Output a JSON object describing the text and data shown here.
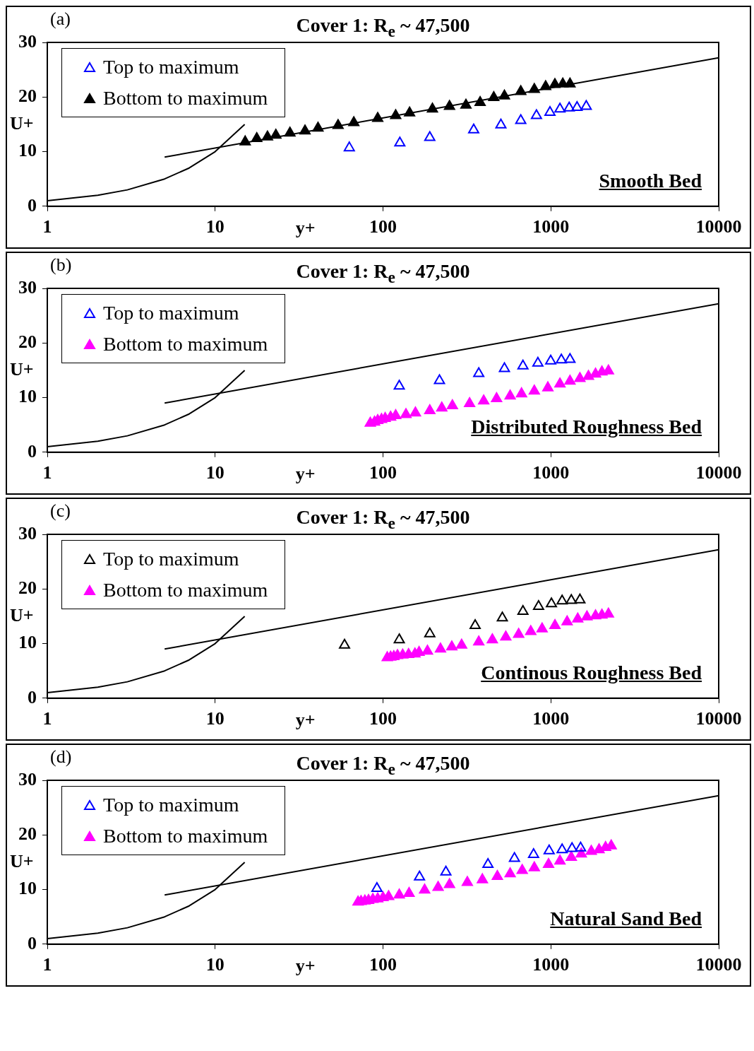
{
  "chart_data": [
    {
      "type": "scatter",
      "title": "Cover 1: R$_{e}$ ~ 47,500",
      "xlabel": "y+",
      "ylabel": "U+",
      "annotations": [
        "(a)",
        "Smooth Bed"
      ],
      "log": "x",
      "xlim": [
        1,
        10000
      ],
      "xticks": [
        1,
        10,
        100,
        1000,
        10000
      ],
      "ylim": [
        0,
        30
      ],
      "yticks": [
        0,
        10,
        20,
        30
      ],
      "grid": false,
      "legend": "top left",
      "marker": "triangle",
      "series": [
        {
          "name": "Top to maximum",
          "color": "#0000ff",
          "x": [
            63,
            126,
            190,
            347,
            504,
            662,
            821,
            988,
            1133,
            1286,
            1432,
            1625
          ],
          "values": [
            10.7,
            11.6,
            12.6,
            14.0,
            14.9,
            15.7,
            16.6,
            17.2,
            17.8,
            18.0,
            18.1,
            18.3
          ]
        },
        {
          "name": "Bottom to maximum",
          "color": "#000000",
          "x": [
            15.1,
            17.7,
            20.5,
            23,
            27.9,
            34.3,
            41,
            54,
            67,
            93,
            119,
            144,
            197,
            249,
            312,
            379,
            457,
            529,
            662,
            797,
            931,
            1057,
            1178,
            1300
          ],
          "values": [
            11.8,
            12.4,
            12.7,
            13.0,
            13.4,
            13.8,
            14.3,
            14.8,
            15.3,
            16.1,
            16.6,
            17.1,
            17.8,
            18.3,
            18.5,
            19.0,
            19.9,
            20.2,
            21.0,
            21.4,
            21.9,
            22.3,
            22.4,
            22.4
          ]
        },
        {
          "type": "line",
          "color": "#000000",
          "marker": "none",
          "x": [
            1,
            2,
            3,
            5,
            7,
            10,
            15
          ],
          "values": [
            1,
            2,
            3,
            5,
            7,
            10,
            15
          ]
        },
        {
          "type": "line",
          "color": "#000000",
          "marker": "none",
          "x": [
            5,
            10000
          ],
          "values": [
            9,
            27.2
          ]
        }
      ]
    },
    {
      "type": "scatter",
      "title": "Cover 1: R$_{e}$ ~ 47,500",
      "xlabel": "y+",
      "ylabel": "U+",
      "annotations": [
        "(b)",
        "Distributed Roughness Bed"
      ],
      "log": "x",
      "xlim": [
        1,
        10000
      ],
      "xticks": [
        1,
        10,
        100,
        1000,
        10000
      ],
      "ylim": [
        0,
        30
      ],
      "yticks": [
        0,
        10,
        20,
        30
      ],
      "grid": false,
      "legend": "top left",
      "marker": "triangle",
      "series": [
        {
          "name": "Top to maximum",
          "color": "#0000ff",
          "x": [
            125,
            217,
            372,
            529,
            682,
            837,
            998,
            1155,
            1300
          ],
          "values": [
            12.1,
            13.1,
            14.4,
            15.3,
            15.8,
            16.3,
            16.7,
            16.9,
            17.0
          ]
        },
        {
          "name": "Bottom to maximum",
          "color": "#ff00ff",
          "x": [
            84,
            89,
            93,
            98,
            103,
            111,
            119,
            137,
            156,
            190,
            224,
            259,
            328,
            398,
            475,
            572,
            669,
            797,
            960,
            1133,
            1300,
            1490,
            1675,
            1846,
            2015,
            2203
          ],
          "values": [
            5.3,
            5.5,
            5.8,
            6.0,
            6.2,
            6.4,
            6.7,
            6.9,
            7.2,
            7.6,
            8.1,
            8.5,
            8.9,
            9.4,
            9.8,
            10.3,
            10.7,
            11.2,
            11.8,
            12.5,
            13.0,
            13.5,
            13.9,
            14.3,
            14.7,
            14.9
          ]
        },
        {
          "type": "line",
          "color": "#000000",
          "marker": "none",
          "x": [
            1,
            2,
            3,
            5,
            7,
            10,
            15
          ],
          "values": [
            1,
            2,
            3,
            5,
            7,
            10,
            15
          ]
        },
        {
          "type": "line",
          "color": "#000000",
          "marker": "none",
          "x": [
            5,
            10000
          ],
          "values": [
            9,
            27.2
          ]
        }
      ]
    },
    {
      "type": "scatter",
      "title": "Cover 1: R$_{e}$ ~ 47,500",
      "xlabel": "y+",
      "ylabel": "U+",
      "annotations": [
        "(c)",
        "Continous Roughness Bed"
      ],
      "log": "x",
      "xlim": [
        1,
        10000
      ],
      "xticks": [
        1,
        10,
        100,
        1000,
        10000
      ],
      "ylim": [
        0,
        30
      ],
      "yticks": [
        0,
        10,
        20,
        30
      ],
      "grid": false,
      "legend": "top left",
      "marker": "triangle",
      "series": [
        {
          "name": "Top to maximum",
          "color": "#000000",
          "x": [
            59,
            125,
            190,
            354,
            514,
            682,
            845,
            1008,
            1167,
            1324,
            1490
          ],
          "values": [
            9.7,
            10.7,
            11.8,
            13.3,
            14.7,
            15.9,
            16.8,
            17.3,
            17.8,
            17.9,
            18.0
          ]
        },
        {
          "name": "Bottom to maximum",
          "color": "#ff00ff",
          "x": [
            106,
            111,
            116,
            122,
            131,
            142,
            155,
            164,
            184,
            220,
            257,
            294,
            372,
            448,
            539,
            643,
            759,
            887,
            1058,
            1250,
            1446,
            1641,
            1846,
            2015,
            2203
          ],
          "values": [
            7.4,
            7.5,
            7.6,
            7.8,
            7.9,
            8.0,
            8.1,
            8.4,
            8.6,
            9.0,
            9.4,
            9.7,
            10.3,
            10.7,
            11.2,
            11.7,
            12.2,
            12.7,
            13.3,
            14.0,
            14.5,
            14.9,
            15.1,
            15.2,
            15.4
          ]
        },
        {
          "type": "line",
          "color": "#000000",
          "marker": "none",
          "x": [
            1,
            2,
            3,
            5,
            7,
            10,
            15
          ],
          "values": [
            1,
            2,
            3,
            5,
            7,
            10,
            15
          ]
        },
        {
          "type": "line",
          "color": "#000000",
          "marker": "none",
          "x": [
            5,
            10000
          ],
          "values": [
            9,
            27.2
          ]
        }
      ]
    },
    {
      "type": "scatter",
      "title": "Cover 1: R$_{e}$ ~ 47,500",
      "xlabel": "y+",
      "ylabel": "U+",
      "annotations": [
        "(d)",
        "Natural Sand Bed"
      ],
      "log": "x",
      "xlim": [
        1,
        10000
      ],
      "xticks": [
        1,
        10,
        100,
        1000,
        10000
      ],
      "ylim": [
        0,
        30
      ],
      "yticks": [
        0,
        10,
        20,
        30
      ],
      "grid": false,
      "legend": "top left",
      "marker": "triangle",
      "series": [
        {
          "name": "Top to maximum",
          "color": "#0000ff",
          "x": [
            92,
            165,
            237,
            422,
            607,
            789,
            977,
            1167,
            1337,
            1504
          ],
          "values": [
            10.2,
            12.3,
            13.2,
            14.6,
            15.7,
            16.4,
            17.1,
            17.3,
            17.5,
            17.6
          ]
        },
        {
          "name": "Bottom to maximum",
          "color": "#ff00ff",
          "x": [
            71,
            74,
            78,
            82,
            87,
            93,
            100,
            108,
            125,
            143,
            177,
            213,
            249,
            318,
            391,
            480,
            572,
            675,
            797,
            969,
            1133,
            1324,
            1518,
            1741,
            1937,
            2118,
            2289
          ],
          "values": [
            7.7,
            7.8,
            7.9,
            8.0,
            8.2,
            8.3,
            8.5,
            8.7,
            9.0,
            9.3,
            9.9,
            10.4,
            10.9,
            11.3,
            11.8,
            12.4,
            12.9,
            13.5,
            14.0,
            14.6,
            15.2,
            15.9,
            16.5,
            17.0,
            17.3,
            17.7,
            18.0
          ]
        },
        {
          "type": "line",
          "color": "#000000",
          "marker": "none",
          "x": [
            1,
            2,
            3,
            5,
            7,
            10,
            15
          ],
          "values": [
            1,
            2,
            3,
            5,
            7,
            10,
            15
          ]
        },
        {
          "type": "line",
          "color": "#000000",
          "marker": "none",
          "x": [
            5,
            10000
          ],
          "values": [
            9,
            27.2
          ]
        }
      ]
    }
  ]
}
